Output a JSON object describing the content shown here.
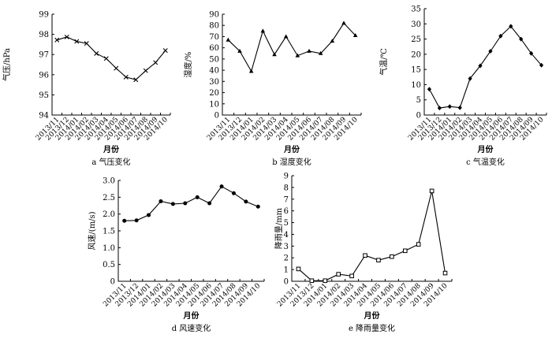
{
  "chart_data": [
    {
      "type": "line",
      "marker": "x",
      "categories": [
        "2013/11",
        "2013/12",
        "2014/01",
        "2014/02",
        "2014/03",
        "2014/04",
        "2014/05",
        "2014/06",
        "2014/07",
        "2014/08",
        "2014/09",
        "2014/10"
      ],
      "values": [
        97.72,
        97.87,
        97.65,
        97.55,
        97.05,
        96.8,
        96.32,
        95.88,
        95.75,
        96.2,
        96.6,
        97.2
      ],
      "ylabel": "气压/hPa",
      "xlabel": "月份",
      "caption": "a 气压变化",
      "ylim": [
        94,
        99
      ],
      "yticks": [
        "94",
        "95",
        "96",
        "97",
        "98",
        "99"
      ]
    },
    {
      "type": "line",
      "marker": "triangle",
      "categories": [
        "2013/11",
        "2013/12",
        "2014/01",
        "2014/02",
        "2014/03",
        "2014/04",
        "2014/05",
        "2014/06",
        "2014/07",
        "2014/08",
        "2014/09",
        "2014/10"
      ],
      "values": [
        67,
        57,
        39,
        75,
        54,
        70,
        53,
        57,
        55,
        66,
        82,
        71
      ],
      "ylabel": "湿度/%",
      "xlabel": "月份",
      "caption": "b 湿度变化",
      "ylim": [
        0,
        90
      ],
      "yticks": [
        "0",
        "10",
        "20",
        "30",
        "40",
        "50",
        "60",
        "70",
        "80",
        "90"
      ]
    },
    {
      "type": "line",
      "marker": "diamond",
      "categories": [
        "2013/11",
        "2013/12",
        "2014/01",
        "2014/02",
        "2014/03",
        "2014/04",
        "2014/05",
        "2014/06",
        "2014/07",
        "2014/08",
        "2014/09",
        "2014/10"
      ],
      "values": [
        8.5,
        2.3,
        2.8,
        2.4,
        12,
        16.2,
        21,
        26,
        29.2,
        25,
        20.3,
        16.4
      ],
      "ylabel": "气温/℃",
      "xlabel": "月份",
      "caption": "c 气温变化",
      "ylim": [
        0,
        35
      ],
      "yticks": [
        "0",
        "5",
        "10",
        "15",
        "20",
        "25",
        "30",
        "35"
      ]
    },
    {
      "type": "line",
      "marker": "circle",
      "categories": [
        "2013/11",
        "2013/12",
        "2014/01",
        "2014/02",
        "2014/03",
        "2014/04",
        "2014/05",
        "2014/06",
        "2014/07",
        "2014/08",
        "2014/09",
        "2014/10"
      ],
      "values": [
        1.8,
        1.81,
        1.97,
        2.38,
        2.3,
        2.32,
        2.5,
        2.32,
        2.82,
        2.62,
        2.37,
        2.22
      ],
      "ylabel": "风速/(m/s)",
      "xlabel": "月份",
      "caption": "d 风速变化",
      "ylim": [
        0,
        3
      ],
      "yticks": [
        "0",
        "0.5",
        "1.0",
        "1.5",
        "2.0",
        "2.5",
        "3.0"
      ]
    },
    {
      "type": "line",
      "marker": "square",
      "categories": [
        "2013/11",
        "2013/12",
        "2014/01",
        "2014/02",
        "2014/03",
        "2014/04",
        "2014/05",
        "2014/06",
        "2014/07",
        "2014/08",
        "2014/09",
        "2014/10"
      ],
      "values": [
        1.05,
        0.05,
        0.05,
        0.6,
        0.45,
        2.2,
        1.8,
        2.1,
        2.6,
        3.15,
        7.7,
        0.7
      ],
      "ylabel": "降雨量/mm",
      "xlabel": "月份",
      "caption": "e 降雨量变化",
      "ylim": [
        0,
        9
      ],
      "yticks": [
        "0",
        "1",
        "2",
        "3",
        "4",
        "5",
        "6",
        "7",
        "8",
        "9"
      ]
    }
  ]
}
